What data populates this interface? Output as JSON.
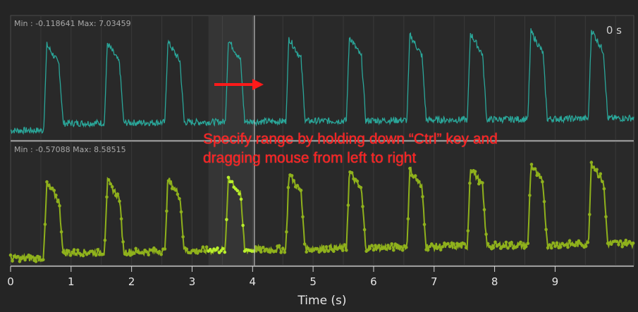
{
  "viewer": {
    "time_readout": "0 s",
    "upper_channel": {
      "range_label": "Min : -0.118641 Max: 7.03459",
      "trace_color": "#2aa79a"
    },
    "lower_channel": {
      "range_label": "Min : -0.57088 Max: 8.58515",
      "trace_color": "#8fb11c",
      "selected_trace_color": "#b8ee2c"
    },
    "x_axis": {
      "label": "Time (s)",
      "range": [
        0,
        10.3
      ],
      "ticks": [
        "0",
        "1",
        "2",
        "3",
        "4",
        "5",
        "6",
        "7",
        "8",
        "9"
      ]
    },
    "selection": {
      "start_s": 3.27,
      "end_s": 4.03
    },
    "callout": {
      "line1": "Specify range by holding down “Ctrl” key and",
      "line2": "dragging mouse from left to right",
      "color": "#ff2020"
    },
    "pulse_times_s": [
      0.55,
      1.55,
      2.55,
      3.55,
      4.55,
      5.55,
      6.55,
      7.55,
      8.55,
      9.55
    ]
  }
}
